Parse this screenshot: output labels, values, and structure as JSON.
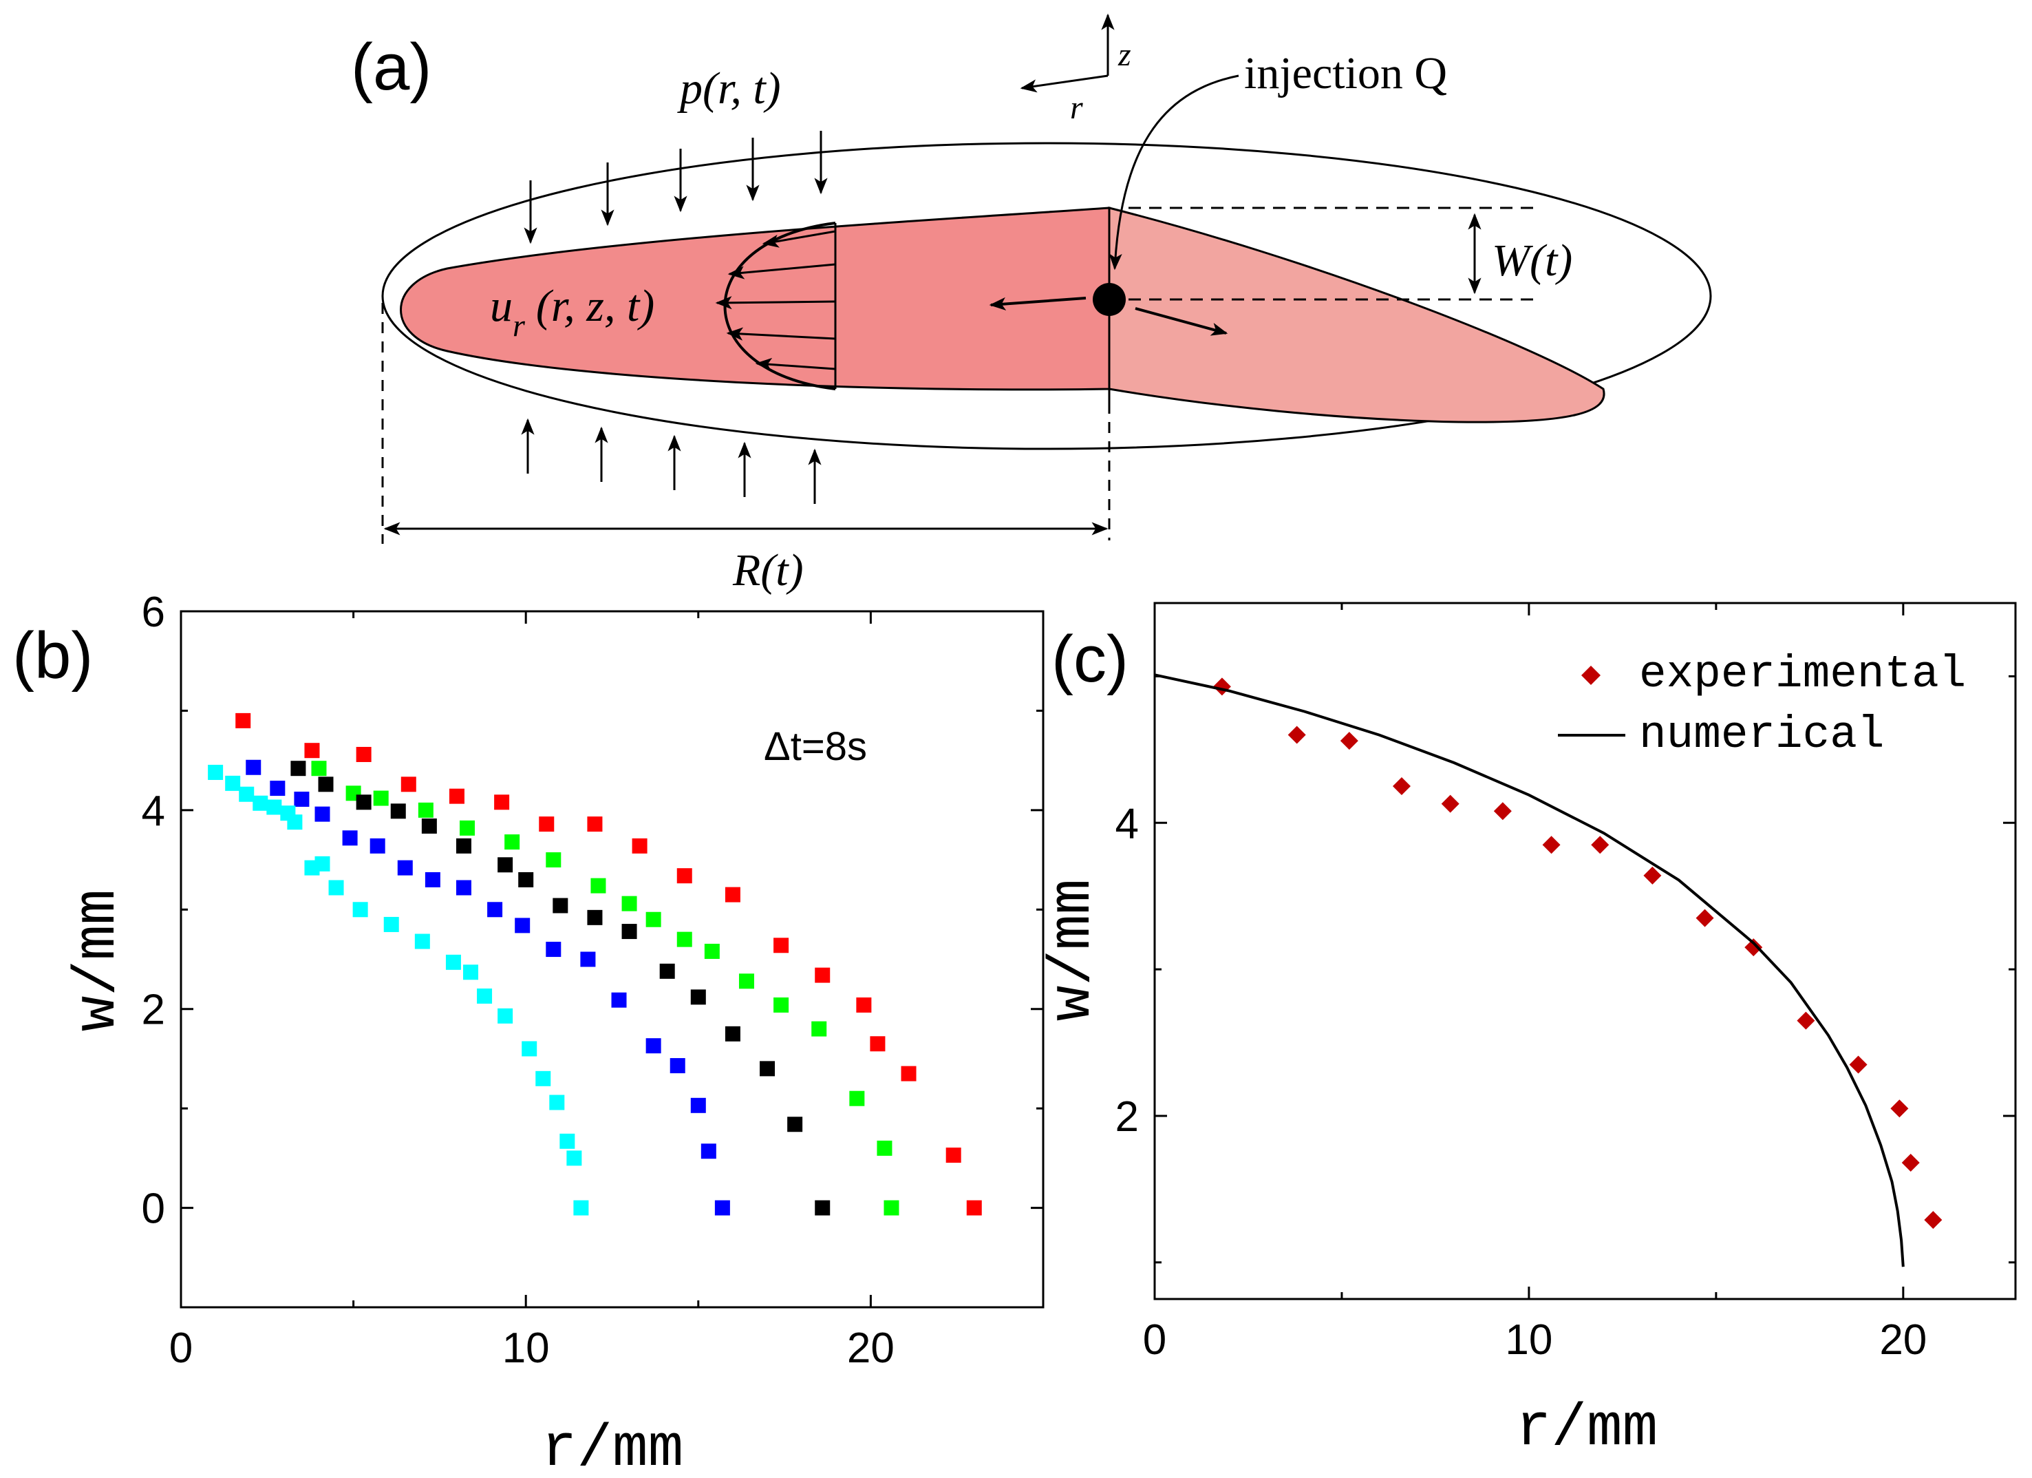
{
  "colors": {
    "crack_fill": "#f28b8b",
    "crack_fill_light": "#f2a5a0",
    "axis": "#000000",
    "series_red": "#ff0000",
    "series_green": "#00ff00",
    "series_black": "#000000",
    "series_blue": "#0000ff",
    "series_cyan": "#00ffff",
    "experimental": "#c00000"
  },
  "panel_a": {
    "label": "(a)",
    "pressure": "p(r, t)",
    "axis_z": "z",
    "axis_r": "r",
    "injection": "injection Q",
    "velocity": "u",
    "velocity_sub": "r",
    "velocity_args": "(r, z, t)",
    "width": "W(t)",
    "radius": "R(t)"
  },
  "chart_data": [
    {
      "panel": "(b)",
      "type": "scatter",
      "title": "",
      "xlabel": "r/mm",
      "ylabel": "w/mm",
      "xlim": [
        0,
        25
      ],
      "ylim": [
        -1,
        6
      ],
      "xticks": [
        0,
        10,
        20
      ],
      "yticks": [
        0,
        2,
        4,
        6
      ],
      "annotation": "Δt=8s",
      "marker": "square",
      "series": [
        {
          "name": "red",
          "color": "#ff0000",
          "x": [
            1.8,
            3.8,
            5.3,
            6.6,
            8.0,
            9.3,
            10.6,
            12.0,
            13.3,
            14.6,
            16.0,
            17.4,
            18.6,
            19.8,
            20.2,
            21.1,
            22.4,
            23.0
          ],
          "y": [
            4.9,
            4.6,
            4.56,
            4.26,
            4.14,
            4.08,
            3.86,
            3.86,
            3.64,
            3.34,
            3.15,
            2.64,
            2.34,
            2.04,
            1.65,
            1.35,
            0.53,
            0.0
          ]
        },
        {
          "name": "green",
          "color": "#00ff00",
          "x": [
            4.0,
            5.0,
            5.8,
            7.1,
            8.3,
            9.6,
            10.8,
            12.1,
            13.0,
            13.7,
            14.6,
            15.4,
            16.4,
            17.4,
            18.5,
            19.6,
            20.4,
            20.6
          ],
          "y": [
            4.42,
            4.17,
            4.12,
            4.0,
            3.82,
            3.68,
            3.5,
            3.24,
            3.06,
            2.9,
            2.7,
            2.58,
            2.28,
            2.04,
            1.8,
            1.1,
            0.6,
            0.0
          ]
        },
        {
          "name": "black",
          "color": "#000000",
          "x": [
            3.4,
            4.2,
            5.3,
            6.3,
            7.2,
            8.2,
            9.4,
            10.0,
            11.0,
            12.0,
            13.0,
            14.1,
            15.0,
            16.0,
            17.0,
            17.8,
            18.6
          ],
          "y": [
            4.42,
            4.26,
            4.08,
            3.99,
            3.84,
            3.64,
            3.45,
            3.3,
            3.04,
            2.92,
            2.78,
            2.38,
            2.12,
            1.75,
            1.4,
            0.84,
            0.0
          ]
        },
        {
          "name": "blue",
          "color": "#0000ff",
          "x": [
            2.1,
            2.8,
            3.5,
            4.1,
            4.9,
            5.7,
            6.5,
            7.3,
            8.2,
            9.1,
            9.9,
            10.8,
            11.8,
            12.7,
            13.7,
            14.4,
            15.0,
            15.3,
            15.7
          ],
          "y": [
            4.43,
            4.22,
            4.11,
            3.96,
            3.72,
            3.64,
            3.42,
            3.3,
            3.22,
            3.0,
            2.84,
            2.6,
            2.5,
            2.09,
            1.63,
            1.43,
            1.03,
            0.57,
            0.0
          ]
        },
        {
          "name": "cyan",
          "color": "#00ffff",
          "x": [
            1.0,
            1.5,
            1.9,
            2.3,
            2.7,
            3.1,
            3.3,
            3.8,
            4.1,
            4.5,
            5.2,
            6.1,
            7.0,
            7.9,
            8.4,
            8.8,
            9.4,
            10.1,
            10.5,
            10.9,
            11.2,
            11.4,
            11.6
          ],
          "y": [
            4.38,
            4.27,
            4.16,
            4.07,
            4.03,
            3.97,
            3.88,
            3.42,
            3.46,
            3.22,
            3.0,
            2.85,
            2.68,
            2.47,
            2.37,
            2.13,
            1.93,
            1.6,
            1.3,
            1.06,
            0.67,
            0.5,
            0.0
          ]
        }
      ]
    },
    {
      "panel": "(c)",
      "type": "scatter",
      "title": "",
      "xlabel": "r/mm",
      "ylabel": "w/mm",
      "xlim": [
        0,
        23
      ],
      "ylim": [
        0.75,
        5.5
      ],
      "xticks": [
        0,
        10,
        20
      ],
      "yticks": [
        2,
        4
      ],
      "legend_position": "top-right",
      "series": [
        {
          "name": "experimental",
          "kind": "diamond",
          "color": "#c00000",
          "x": [
            1.8,
            3.8,
            5.2,
            6.6,
            7.9,
            9.3,
            10.6,
            11.9,
            13.3,
            14.7,
            16.0,
            17.4,
            18.8,
            19.9,
            20.2,
            20.8
          ],
          "y": [
            4.93,
            4.6,
            4.56,
            4.25,
            4.13,
            4.08,
            3.85,
            3.85,
            3.64,
            3.35,
            3.15,
            2.65,
            2.35,
            2.05,
            1.68,
            1.29
          ]
        },
        {
          "name": "numerical",
          "kind": "line",
          "color": "#000000",
          "x": [
            0,
            2,
            4,
            6,
            8,
            10,
            12,
            14,
            16,
            17,
            18,
            18.5,
            19,
            19.4,
            19.7,
            19.85,
            19.95,
            20.0
          ],
          "y": [
            5.01,
            4.9,
            4.76,
            4.6,
            4.41,
            4.19,
            3.93,
            3.61,
            3.18,
            2.91,
            2.55,
            2.33,
            2.07,
            1.8,
            1.55,
            1.35,
            1.15,
            0.97
          ]
        }
      ]
    }
  ]
}
